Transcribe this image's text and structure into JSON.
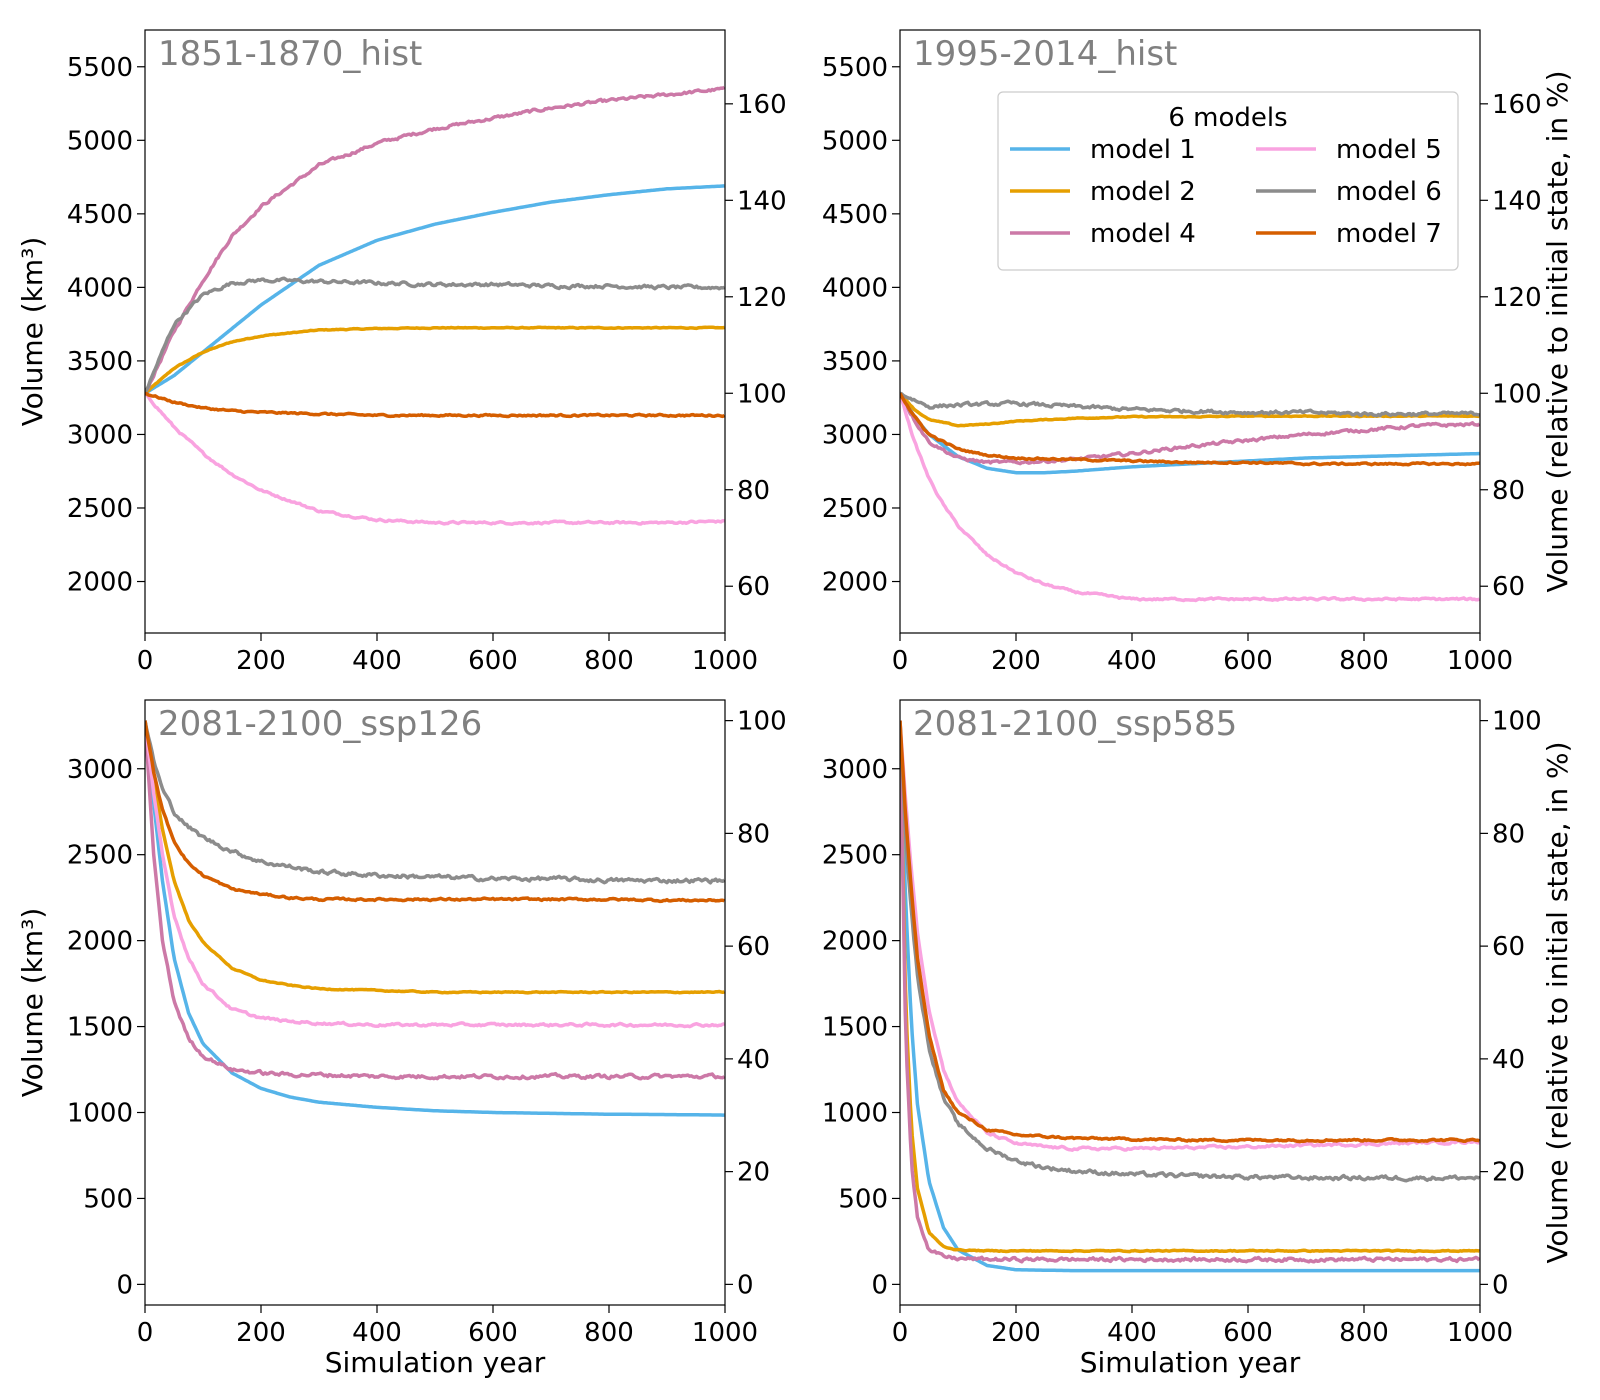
{
  "colors": {
    "model 1": "#56b4e9",
    "model 2": "#e69f00",
    "model 4": "#cc79a7",
    "model 5": "#f9a3e0",
    "model 6": "#8c8c8c",
    "model 7": "#d55e00"
  },
  "legend": {
    "title": "6 models",
    "placement": "top-right of panel 2",
    "entries": [
      "model 1",
      "model 2",
      "model 4",
      "model 5",
      "model 6",
      "model 7"
    ]
  },
  "chart_data": [
    {
      "type": "line",
      "title": "1851-1870_hist",
      "xlabel": "",
      "ylabel": "Volume (km³)",
      "y2label": "",
      "xlim": [
        0,
        1000
      ],
      "ylim": [
        1650,
        5750
      ],
      "y2_reference": 3280,
      "xticks": [
        0,
        200,
        400,
        600,
        800,
        1000
      ],
      "yticks": [
        2000,
        2500,
        3000,
        3500,
        4000,
        4500,
        5000,
        5500
      ],
      "y2ticks": [
        60,
        80,
        100,
        120,
        140,
        160
      ],
      "series": [
        {
          "name": "model 1",
          "x": [
            0,
            50,
            100,
            150,
            200,
            300,
            400,
            500,
            600,
            700,
            800,
            900,
            1000
          ],
          "values": [
            3280,
            3400,
            3560,
            3720,
            3880,
            4150,
            4320,
            4430,
            4510,
            4580,
            4630,
            4670,
            4690
          ]
        },
        {
          "name": "model 2",
          "x": [
            0,
            50,
            100,
            150,
            200,
            300,
            400,
            500,
            600,
            700,
            800,
            900,
            1000
          ],
          "values": [
            3280,
            3450,
            3560,
            3630,
            3670,
            3710,
            3720,
            3725,
            3725,
            3725,
            3725,
            3725,
            3725
          ]
        },
        {
          "name": "model 4",
          "x": [
            0,
            50,
            100,
            150,
            200,
            300,
            400,
            500,
            600,
            700,
            800,
            900,
            1000
          ],
          "values": [
            3280,
            3700,
            4050,
            4350,
            4550,
            4830,
            4980,
            5080,
            5150,
            5220,
            5270,
            5310,
            5350
          ]
        },
        {
          "name": "model 5",
          "x": [
            0,
            50,
            100,
            150,
            200,
            300,
            400,
            500,
            600,
            700,
            800,
            900,
            1000
          ],
          "values": [
            3280,
            3050,
            2870,
            2730,
            2620,
            2480,
            2420,
            2400,
            2400,
            2400,
            2400,
            2400,
            2410
          ]
        },
        {
          "name": "model 6",
          "x": [
            0,
            50,
            100,
            150,
            200,
            300,
            400,
            500,
            600,
            700,
            800,
            900,
            1000
          ],
          "values": [
            3280,
            3750,
            3950,
            4030,
            4050,
            4040,
            4030,
            4020,
            4020,
            4010,
            4010,
            4000,
            4000
          ]
        },
        {
          "name": "model 7",
          "x": [
            0,
            50,
            100,
            150,
            200,
            300,
            400,
            500,
            600,
            700,
            800,
            900,
            1000
          ],
          "values": [
            3280,
            3220,
            3180,
            3160,
            3150,
            3140,
            3130,
            3130,
            3130,
            3130,
            3130,
            3130,
            3130
          ]
        }
      ]
    },
    {
      "type": "line",
      "title": "1995-2014_hist",
      "xlabel": "",
      "ylabel": "",
      "y2label": "Volume (relative to initial state, in %)",
      "xlim": [
        0,
        1000
      ],
      "ylim": [
        1650,
        5750
      ],
      "y2_reference": 3280,
      "xticks": [
        0,
        200,
        400,
        600,
        800,
        1000
      ],
      "yticks": [
        2000,
        2500,
        3000,
        3500,
        4000,
        4500,
        5000,
        5500
      ],
      "y2ticks": [
        60,
        80,
        100,
        120,
        140,
        160
      ],
      "series": [
        {
          "name": "model 1",
          "x": [
            0,
            25,
            50,
            100,
            150,
            200,
            250,
            300,
            400,
            500,
            600,
            700,
            800,
            900,
            1000
          ],
          "values": [
            3280,
            3120,
            3000,
            2850,
            2770,
            2740,
            2740,
            2750,
            2780,
            2800,
            2820,
            2840,
            2850,
            2860,
            2870
          ]
        },
        {
          "name": "model 2",
          "x": [
            0,
            25,
            50,
            100,
            150,
            200,
            300,
            400,
            500,
            600,
            700,
            800,
            900,
            1000
          ],
          "values": [
            3280,
            3170,
            3100,
            3060,
            3070,
            3090,
            3110,
            3120,
            3120,
            3125,
            3125,
            3125,
            3125,
            3125
          ]
        },
        {
          "name": "model 4",
          "x": [
            0,
            25,
            50,
            100,
            150,
            200,
            300,
            400,
            500,
            600,
            700,
            800,
            900,
            1000
          ],
          "values": [
            3280,
            3100,
            2950,
            2840,
            2810,
            2810,
            2830,
            2870,
            2920,
            2960,
            3000,
            3030,
            3060,
            3070
          ]
        },
        {
          "name": "model 5",
          "x": [
            0,
            25,
            50,
            75,
            100,
            150,
            200,
            250,
            300,
            400,
            500,
            600,
            700,
            800,
            900,
            1000
          ],
          "values": [
            3280,
            2950,
            2700,
            2520,
            2380,
            2180,
            2060,
            1980,
            1930,
            1880,
            1880,
            1880,
            1880,
            1880,
            1880,
            1880
          ]
        },
        {
          "name": "model 6",
          "x": [
            0,
            50,
            100,
            200,
            300,
            400,
            500,
            600,
            700,
            800,
            900,
            1000
          ],
          "values": [
            3280,
            3190,
            3200,
            3210,
            3190,
            3170,
            3160,
            3150,
            3150,
            3140,
            3140,
            3140
          ]
        },
        {
          "name": "model 7",
          "x": [
            0,
            25,
            50,
            100,
            150,
            200,
            300,
            400,
            500,
            600,
            700,
            800,
            900,
            1000
          ],
          "values": [
            3280,
            3120,
            3000,
            2900,
            2860,
            2840,
            2830,
            2820,
            2810,
            2810,
            2800,
            2800,
            2800,
            2800
          ]
        }
      ]
    },
    {
      "type": "line",
      "title": "2081-2100_ssp126",
      "xlabel": "Simulation year",
      "ylabel": "Volume (km³)",
      "y2label": "",
      "xlim": [
        0,
        1000
      ],
      "ylim": [
        -120,
        3400
      ],
      "y2_reference": 3280,
      "xticks": [
        0,
        200,
        400,
        600,
        800,
        1000
      ],
      "yticks": [
        0,
        500,
        1000,
        1500,
        2000,
        2500,
        3000
      ],
      "y2ticks": [
        0,
        20,
        40,
        60,
        80,
        100
      ],
      "series": [
        {
          "name": "model 1",
          "x": [
            0,
            15,
            30,
            50,
            75,
            100,
            150,
            200,
            250,
            300,
            400,
            500,
            600,
            700,
            800,
            900,
            1000
          ],
          "values": [
            3280,
            2800,
            2350,
            1900,
            1580,
            1400,
            1230,
            1140,
            1090,
            1060,
            1030,
            1010,
            1000,
            995,
            990,
            988,
            985
          ]
        },
        {
          "name": "model 2",
          "x": [
            0,
            15,
            30,
            50,
            75,
            100,
            150,
            200,
            250,
            300,
            400,
            500,
            600,
            700,
            800,
            900,
            1000
          ],
          "values": [
            3280,
            2950,
            2650,
            2350,
            2120,
            1990,
            1840,
            1770,
            1740,
            1720,
            1710,
            1700,
            1700,
            1700,
            1700,
            1700,
            1700
          ]
        },
        {
          "name": "model 4",
          "x": [
            0,
            15,
            30,
            50,
            75,
            100,
            150,
            200,
            250,
            300,
            400,
            500,
            600,
            700,
            800,
            900,
            1000
          ],
          "values": [
            3280,
            2500,
            2000,
            1650,
            1430,
            1330,
            1250,
            1230,
            1220,
            1220,
            1210,
            1210,
            1210,
            1210,
            1210,
            1210,
            1210
          ]
        },
        {
          "name": "model 5",
          "x": [
            0,
            15,
            30,
            50,
            75,
            100,
            150,
            200,
            250,
            300,
            400,
            500,
            600,
            700,
            800,
            900,
            1000
          ],
          "values": [
            3280,
            2850,
            2500,
            2150,
            1900,
            1750,
            1600,
            1550,
            1530,
            1520,
            1510,
            1510,
            1510,
            1510,
            1510,
            1510,
            1510
          ]
        },
        {
          "name": "model 6",
          "x": [
            0,
            15,
            30,
            50,
            75,
            100,
            150,
            200,
            250,
            300,
            400,
            500,
            600,
            700,
            800,
            900,
            1000
          ],
          "values": [
            3280,
            3050,
            2880,
            2750,
            2660,
            2600,
            2520,
            2460,
            2430,
            2400,
            2380,
            2370,
            2360,
            2360,
            2350,
            2350,
            2350
          ]
        },
        {
          "name": "model 7",
          "x": [
            0,
            15,
            30,
            50,
            75,
            100,
            150,
            200,
            250,
            300,
            400,
            500,
            600,
            700,
            800,
            900,
            1000
          ],
          "values": [
            3280,
            2980,
            2760,
            2580,
            2450,
            2380,
            2300,
            2270,
            2250,
            2240,
            2240,
            2240,
            2240,
            2240,
            2240,
            2235,
            2235
          ]
        }
      ]
    },
    {
      "type": "line",
      "title": "2081-2100_ssp585",
      "xlabel": "Simulation year",
      "ylabel": "",
      "y2label": "Volume (relative to initial state, in %)",
      "xlim": [
        0,
        1000
      ],
      "ylim": [
        -120,
        3400
      ],
      "y2_reference": 3280,
      "xticks": [
        0,
        200,
        400,
        600,
        800,
        1000
      ],
      "yticks": [
        0,
        500,
        1000,
        1500,
        2000,
        2500,
        3000
      ],
      "y2ticks": [
        0,
        20,
        40,
        60,
        80,
        100
      ],
      "series": [
        {
          "name": "model 1",
          "x": [
            0,
            10,
            20,
            30,
            50,
            75,
            100,
            150,
            200,
            300,
            400,
            600,
            800,
            1000
          ],
          "values": [
            3280,
            2200,
            1500,
            1050,
            600,
            330,
            200,
            110,
            85,
            80,
            80,
            80,
            80,
            80
          ]
        },
        {
          "name": "model 2",
          "x": [
            0,
            10,
            20,
            30,
            50,
            75,
            100,
            150,
            200,
            300,
            400,
            600,
            800,
            1000
          ],
          "values": [
            3280,
            1600,
            900,
            560,
            300,
            220,
            200,
            195,
            195,
            195,
            195,
            195,
            195,
            195
          ]
        },
        {
          "name": "model 4",
          "x": [
            0,
            10,
            20,
            30,
            50,
            75,
            100,
            150,
            200,
            300,
            400,
            600,
            800,
            1000
          ],
          "values": [
            3280,
            1400,
            700,
            400,
            200,
            160,
            150,
            145,
            145,
            145,
            145,
            145,
            145,
            145
          ]
        },
        {
          "name": "model 5",
          "x": [
            0,
            10,
            20,
            30,
            50,
            75,
            100,
            150,
            200,
            250,
            300,
            400,
            500,
            600,
            700,
            800,
            900,
            1000
          ],
          "values": [
            3280,
            2800,
            2400,
            2050,
            1600,
            1250,
            1060,
            880,
            820,
            800,
            790,
            790,
            795,
            800,
            810,
            815,
            825,
            830
          ]
        },
        {
          "name": "model 6",
          "x": [
            0,
            10,
            20,
            30,
            50,
            75,
            100,
            150,
            200,
            250,
            300,
            400,
            500,
            600,
            700,
            800,
            900,
            1000
          ],
          "values": [
            3280,
            2600,
            2150,
            1800,
            1380,
            1080,
            930,
            790,
            720,
            680,
            660,
            640,
            630,
            625,
            620,
            620,
            620,
            620
          ]
        },
        {
          "name": "model 7",
          "x": [
            0,
            10,
            20,
            30,
            50,
            75,
            100,
            150,
            200,
            250,
            300,
            400,
            500,
            600,
            700,
            800,
            900,
            1000
          ],
          "values": [
            3280,
            2700,
            2280,
            1900,
            1450,
            1130,
            1000,
            900,
            870,
            860,
            850,
            845,
            840,
            840,
            840,
            840,
            840,
            840
          ]
        }
      ]
    }
  ]
}
